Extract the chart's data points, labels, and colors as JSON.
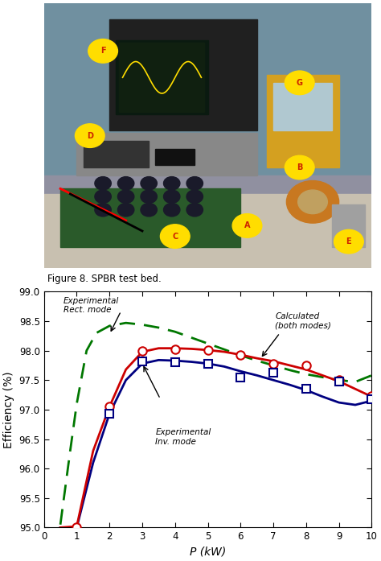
{
  "figure_caption": "Figure 8. SPBR test bed.",
  "xlabel": "P (kW)",
  "ylabel": "Efficiency (%)",
  "xlim": [
    0,
    10
  ],
  "ylim": [
    95.0,
    99.0
  ],
  "xticks": [
    0,
    1,
    2,
    3,
    4,
    5,
    6,
    7,
    8,
    9,
    10
  ],
  "yticks": [
    95.0,
    95.5,
    96.0,
    96.5,
    97.0,
    97.5,
    98.0,
    98.5,
    99.0
  ],
  "rect_exp_x": [
    1,
    2,
    3,
    4,
    5,
    6,
    7,
    8,
    9,
    10
  ],
  "rect_exp_y": [
    95.0,
    97.05,
    98.0,
    98.02,
    98.01,
    97.93,
    97.78,
    97.75,
    97.5,
    97.23
  ],
  "inv_exp_x": [
    2,
    3,
    4,
    5,
    6,
    7,
    8,
    9,
    10
  ],
  "inv_exp_y": [
    96.93,
    97.82,
    97.8,
    97.78,
    97.55,
    97.62,
    97.35,
    97.48,
    97.17
  ],
  "rect_line_x": [
    0.5,
    1.0,
    1.5,
    2.0,
    2.5,
    3.0,
    3.5,
    4.0,
    4.5,
    5.0,
    5.5,
    6.0,
    6.5,
    7.0,
    7.5,
    8.0,
    8.5,
    9.0,
    9.5,
    10.0
  ],
  "rect_line_y": [
    95.0,
    95.02,
    96.3,
    97.05,
    97.68,
    97.98,
    98.04,
    98.04,
    98.03,
    98.01,
    97.98,
    97.93,
    97.87,
    97.82,
    97.75,
    97.68,
    97.58,
    97.48,
    97.35,
    97.22
  ],
  "inv_line_x": [
    0.5,
    1.0,
    1.5,
    2.0,
    2.5,
    3.0,
    3.5,
    4.0,
    4.5,
    5.0,
    5.5,
    6.0,
    6.5,
    7.0,
    7.5,
    8.0,
    8.5,
    9.0,
    9.5,
    10.0
  ],
  "inv_line_y": [
    95.0,
    95.0,
    96.1,
    96.93,
    97.5,
    97.78,
    97.84,
    97.83,
    97.81,
    97.78,
    97.73,
    97.65,
    97.58,
    97.5,
    97.42,
    97.33,
    97.22,
    97.12,
    97.08,
    97.15
  ],
  "calc_x": [
    0.5,
    0.8,
    1.0,
    1.3,
    1.6,
    2.0,
    2.5,
    3.0,
    3.5,
    4.0,
    4.5,
    5.0,
    5.5,
    6.0,
    6.5,
    7.0,
    7.5,
    8.0,
    8.5,
    9.0,
    9.5,
    10.0
  ],
  "calc_y": [
    95.05,
    96.3,
    97.1,
    98.0,
    98.3,
    98.42,
    98.47,
    98.44,
    98.39,
    98.32,
    98.22,
    98.12,
    98.02,
    97.92,
    97.83,
    97.75,
    97.67,
    97.6,
    97.55,
    97.5,
    97.47,
    97.58
  ],
  "rect_color": "#cc0000",
  "inv_color": "#000080",
  "calc_color": "#007700",
  "bg_colors": {
    "sky": "#b0c8d8",
    "wall": "#d0d8e0",
    "bench": "#c8c0a8",
    "equipment": "#606060"
  },
  "annotation_fontsize": 7.5,
  "tick_labelsize": 8.5,
  "axis_labelsize": 10
}
